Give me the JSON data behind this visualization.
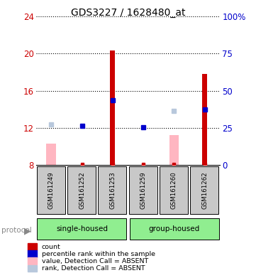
{
  "title": "GDS3227 / 1628480_at",
  "samples": [
    "GSM161249",
    "GSM161252",
    "GSM161253",
    "GSM161259",
    "GSM161260",
    "GSM161262"
  ],
  "ylim_left": [
    8,
    24
  ],
  "ylim_right": [
    0,
    100
  ],
  "yticks_left": [
    8,
    12,
    16,
    20,
    24
  ],
  "yticks_right": [
    0,
    25,
    50,
    75,
    100
  ],
  "ytick_right_labels": [
    "0",
    "25",
    "50",
    "75",
    "100%"
  ],
  "red_bars": {
    "GSM161249": null,
    "GSM161252": null,
    "GSM161253": 20.3,
    "GSM161259": null,
    "GSM161260": null,
    "GSM161262": 17.8
  },
  "red_bar_base": 8,
  "pink_bars": {
    "GSM161249": [
      8,
      10.3
    ],
    "GSM161252": null,
    "GSM161253": null,
    "GSM161259": null,
    "GSM161260": [
      8,
      11.2
    ],
    "GSM161262": null
  },
  "blue_squares": {
    "GSM161249": null,
    "GSM161252": 12.2,
    "GSM161253": 15.0,
    "GSM161259": 12.1,
    "GSM161260": null,
    "GSM161262": 14.0
  },
  "lightblue_squares": {
    "GSM161249": 12.4,
    "GSM161252": null,
    "GSM161253": null,
    "GSM161259": null,
    "GSM161260": 13.8,
    "GSM161262": null
  },
  "small_red_marks": {
    "GSM161249": null,
    "GSM161252": 8.1,
    "GSM161253": 8.1,
    "GSM161259": 8.1,
    "GSM161260": 8.1,
    "GSM161262": 8.1
  },
  "legend_items": [
    {
      "color": "#CC0000",
      "label": "count"
    },
    {
      "color": "#0000CC",
      "label": "percentile rank within the sample"
    },
    {
      "color": "#FFB6C1",
      "label": "value, Detection Call = ABSENT"
    },
    {
      "color": "#B8C8DC",
      "label": "rank, Detection Call = ABSENT"
    }
  ],
  "left_color": "#CC0000",
  "right_color": "#0000CC",
  "bar_color": "#CC0000",
  "pink_color": "#FFB6C1",
  "blue_color": "#0000CC",
  "lightblue_color": "#B8C8DC",
  "sample_box_color": "#C8C8C8",
  "group_color": "#90EE90",
  "bg_color": "#FFFFFF"
}
